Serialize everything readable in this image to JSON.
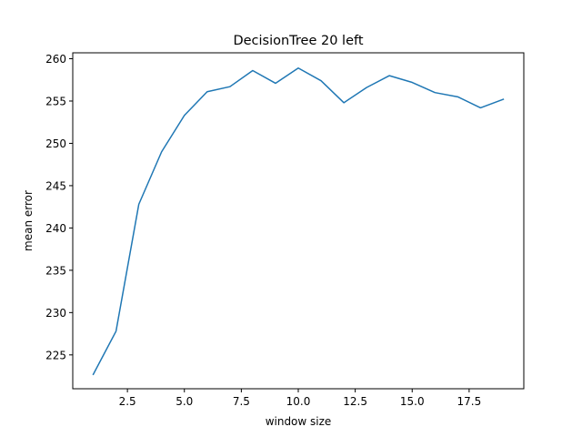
{
  "chart_data": {
    "type": "line",
    "title": "DecisionTree 20 left",
    "xlabel": "window size",
    "ylabel": "mean error",
    "xlim": [
      0.1,
      19.9
    ],
    "ylim": [
      221.0,
      260.7
    ],
    "xticks": [
      2.5,
      5.0,
      7.5,
      10.0,
      12.5,
      15.0,
      17.5
    ],
    "xtick_labels": [
      "2.5",
      "5.0",
      "7.5",
      "10.0",
      "12.5",
      "15.0",
      "17.5"
    ],
    "yticks": [
      225,
      230,
      235,
      240,
      245,
      250,
      255,
      260
    ],
    "ytick_labels": [
      "225",
      "230",
      "235",
      "240",
      "245",
      "250",
      "255",
      "260"
    ],
    "grid": false,
    "series": [
      {
        "color": "#1f77b4",
        "x": [
          1,
          2,
          3,
          4,
          5,
          6,
          7,
          8,
          9,
          10,
          11,
          12,
          13,
          14,
          15,
          16,
          17,
          18,
          19
        ],
        "y": [
          222.7,
          227.8,
          242.8,
          249.0,
          253.3,
          256.1,
          256.7,
          258.6,
          257.1,
          258.9,
          257.4,
          254.8,
          256.6,
          258.0,
          257.2,
          256.0,
          255.5,
          254.2,
          255.2
        ]
      }
    ]
  }
}
